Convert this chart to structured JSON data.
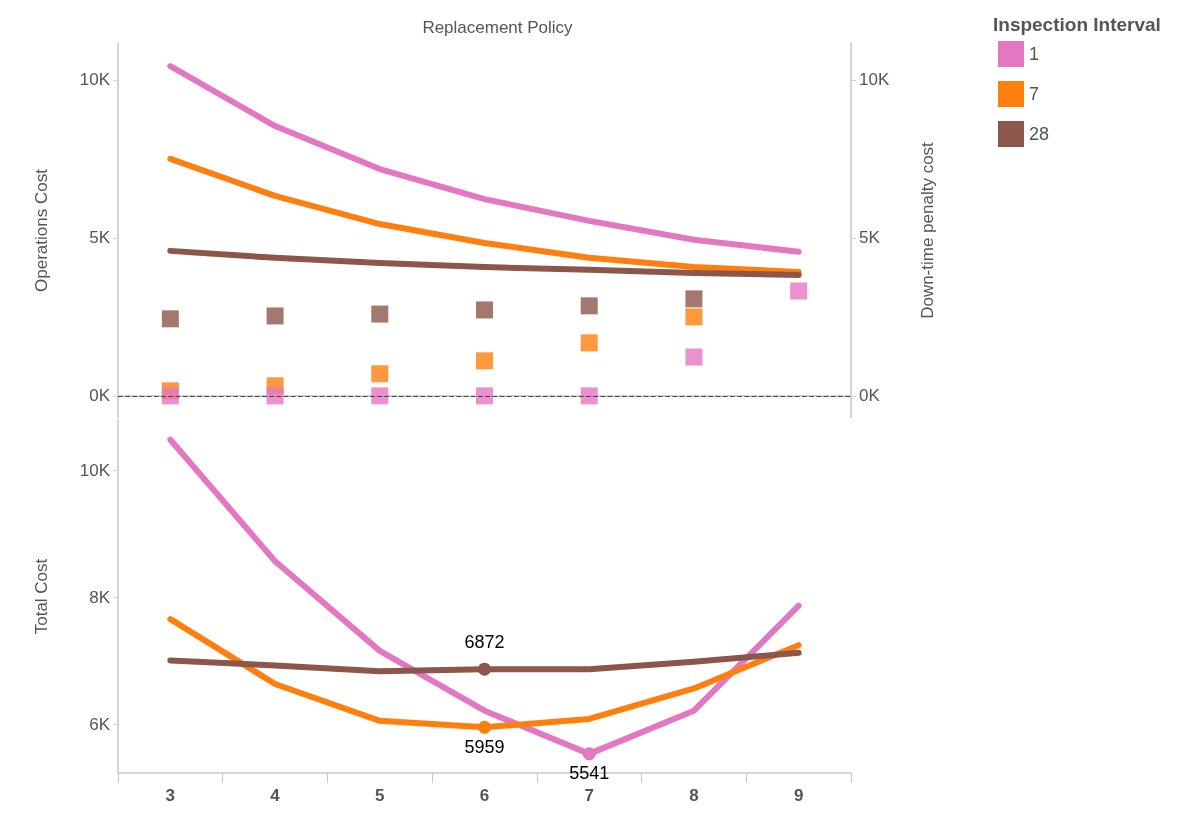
{
  "chart_data": [
    {
      "type": "line",
      "title": "Replacement Policy",
      "ylabel": "Operations Cost",
      "y2label": "Down-time penalty cost",
      "legend_title": "Inspection Interval",
      "legend": "right",
      "marker": "none",
      "tick_labels": "y",
      "categories": [
        "3",
        "4",
        "5",
        "6",
        "7",
        "8",
        "9"
      ],
      "ylim": [
        -700,
        11170
      ],
      "yticks": [
        {
          "value": 0,
          "label": "0K"
        },
        {
          "value": 5000,
          "label": "5K"
        },
        {
          "value": 10000,
          "label": "10K"
        }
      ],
      "y2lim": [
        -700,
        11170
      ],
      "y2ticks": [
        {
          "value": 0,
          "label": "0K"
        },
        {
          "value": 5000,
          "label": "5K"
        },
        {
          "value": 10000,
          "label": "10K"
        }
      ],
      "ref_lines": [
        {
          "axis": "y",
          "value": 0,
          "line_style": "dashed",
          "color": "#444444"
        }
      ],
      "series": [
        {
          "name": "1",
          "color": "#e377c2",
          "values": [
            10440,
            8540,
            7180,
            6230,
            5540,
            4940,
            4560
          ]
        },
        {
          "name": "7",
          "color": "#ff7f0e",
          "values": [
            7500,
            6330,
            5440,
            4840,
            4370,
            4080,
            3920
          ]
        },
        {
          "name": "28",
          "color": "#8c564b",
          "values": [
            4590,
            4370,
            4210,
            4080,
            3990,
            3890,
            3830
          ]
        },
        {
          "type": "scatter",
          "axis": "y2",
          "marker": "square",
          "color": "#8c564b",
          "values": [
            2440,
            2530,
            2590,
            2720,
            2850,
            3070,
            null
          ]
        },
        {
          "type": "scatter",
          "axis": "y2",
          "marker": "square",
          "color": "#ff7f0e",
          "values": [
            160,
            320,
            700,
            1110,
            1680,
            2500,
            null
          ]
        },
        {
          "type": "scatter",
          "axis": "y2",
          "marker": "square",
          "color": "#e377c2",
          "values": [
            0,
            0,
            0,
            0,
            0,
            1230,
            3320
          ]
        }
      ]
    },
    {
      "type": "line",
      "ylabel": "Total Cost",
      "categories": [
        "3",
        "4",
        "5",
        "6",
        "7",
        "8",
        "9"
      ],
      "ylim": [
        5240,
        10790
      ],
      "yticks": [
        {
          "value": 6000,
          "label": "6K"
        },
        {
          "value": 8000,
          "label": "8K"
        },
        {
          "value": 10000,
          "label": "10K"
        }
      ],
      "series": [
        {
          "name": "1",
          "color": "#e377c2",
          "values": [
            10480,
            8570,
            7160,
            6220,
            5541,
            6220,
            7870
          ],
          "value_labels": [
            null,
            null,
            null,
            null,
            "5541",
            null,
            null
          ]
        },
        {
          "name": "7",
          "color": "#ff7f0e",
          "values": [
            7660,
            6640,
            6060,
            5959,
            6090,
            6570,
            7250
          ],
          "value_labels": [
            null,
            null,
            null,
            "5959",
            null,
            null,
            null
          ]
        },
        {
          "name": "28",
          "color": "#8c564b",
          "values": [
            7010,
            6930,
            6840,
            6872,
            6870,
            6990,
            7130
          ],
          "value_labels": [
            null,
            null,
            null,
            "6872",
            null,
            null,
            null
          ]
        }
      ]
    }
  ]
}
